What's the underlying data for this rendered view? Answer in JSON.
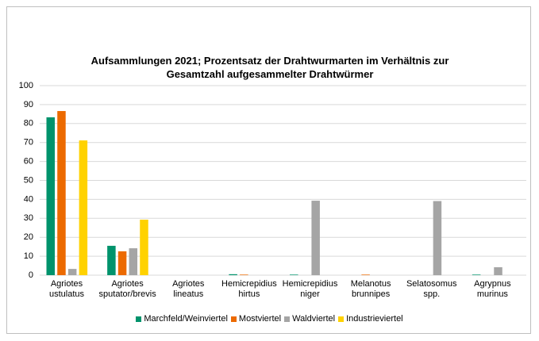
{
  "chart_data": {
    "type": "bar",
    "title": "Aufsammlungen 2021; Prozentsatz der Drahtwurmarten im Verhältnis zur Gesamtzahl aufgesammelter Drahtwürmer",
    "categories": [
      "Agriotes ustulatus",
      "Agriotes sputator/brevis",
      "Agriotes lineatus",
      "Hemicrepidius hirtus",
      "Hemicrepidius niger",
      "Melanotus brunnipes",
      "Selatosomus spp.",
      "Agrypnus murinus"
    ],
    "series": [
      {
        "name": "Marchfeld/Weinviertel",
        "color": "#00936c",
        "values": [
          83.3,
          15.5,
          0,
          0.5,
          0.3,
          0,
          0,
          0.3
        ]
      },
      {
        "name": "Mostviertel",
        "color": "#ec6a00",
        "values": [
          86.6,
          12.6,
          0,
          0.3,
          0,
          0.3,
          0,
          0
        ]
      },
      {
        "name": "Waldviertel",
        "color": "#a5a5a5",
        "values": [
          3.3,
          14.2,
          0,
          0,
          39.3,
          0,
          39.1,
          4.2
        ]
      },
      {
        "name": "Industrieviertel",
        "color": "#ffd200",
        "values": [
          71.1,
          29.3,
          0,
          0,
          0,
          0,
          0,
          0
        ]
      }
    ],
    "ylim": [
      0,
      100
    ],
    "yticks": [
      0,
      10,
      20,
      30,
      40,
      50,
      60,
      70,
      80,
      90,
      100
    ],
    "grid": true,
    "legend": "bottom"
  }
}
